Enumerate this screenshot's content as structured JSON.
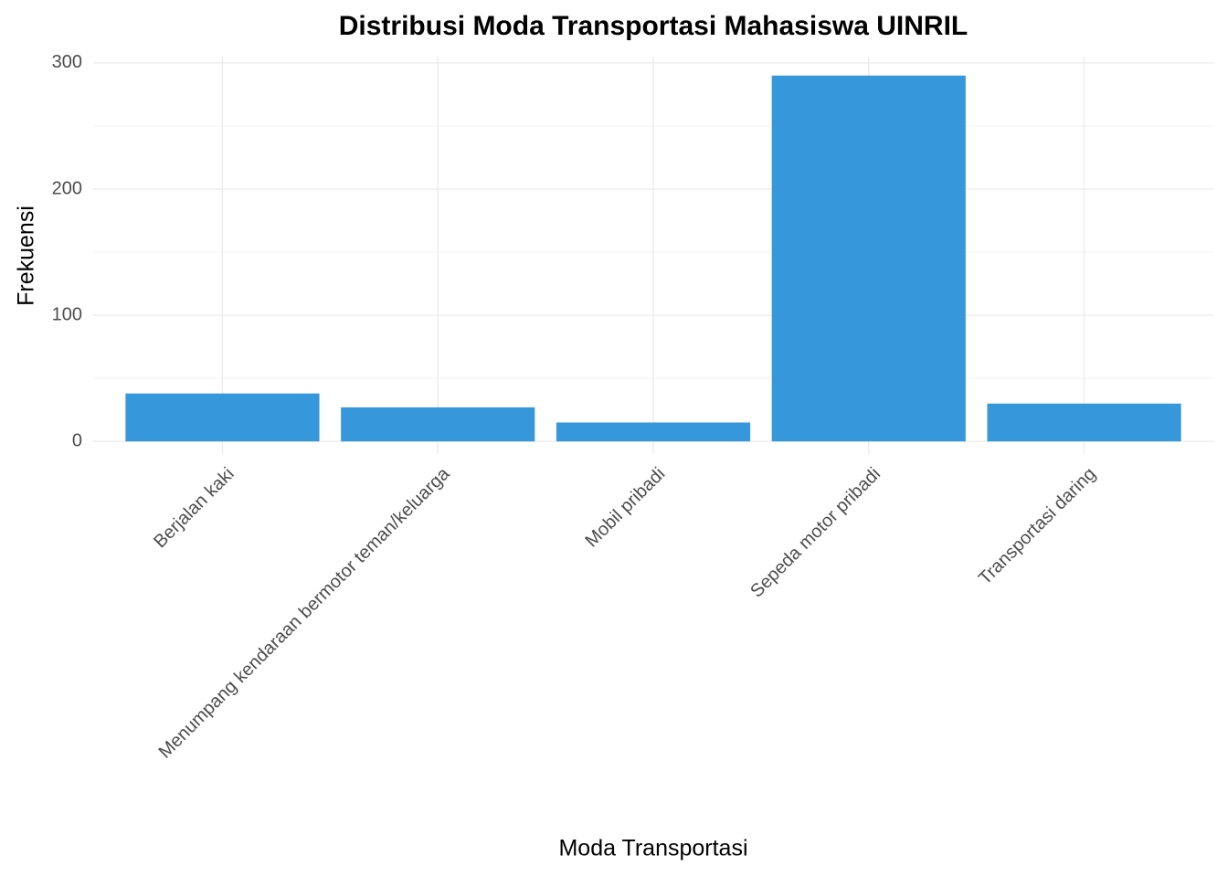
{
  "chart_data": {
    "type": "bar",
    "title": "Distribusi Moda Transportasi Mahasiswa UINRIL",
    "x_label": "Moda Transportasi",
    "y_label": "Frekuensi",
    "categories": [
      "Berjalan kaki",
      "Menumpang kendaraan bermotor teman/keluarga",
      "Mobil pribadi",
      "Sepeda motor pribadi",
      "Transportasi daring"
    ],
    "values": [
      38,
      27,
      15,
      290,
      30
    ],
    "color": "#3698db",
    "ylim": [
      -10,
      305
    ],
    "yticks": [
      0,
      100,
      200,
      300
    ],
    "minor_yticks": [
      50,
      150,
      250
    ],
    "grid": true
  }
}
